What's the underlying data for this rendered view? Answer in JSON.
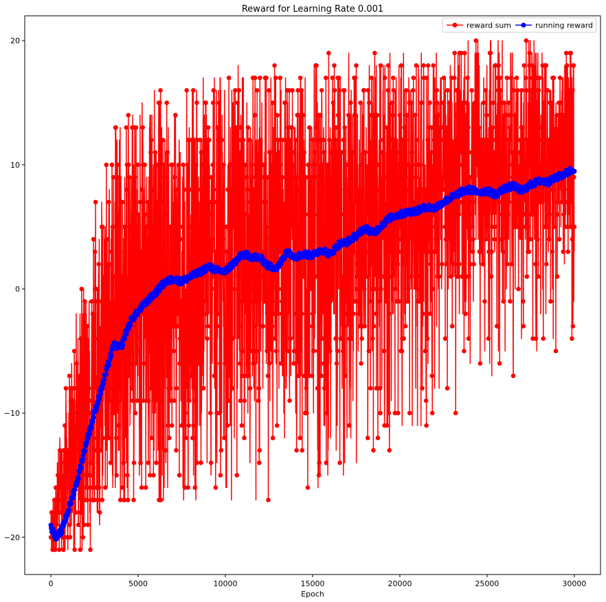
{
  "chart_data": {
    "type": "line",
    "title": "Reward for Learning Rate 0.001",
    "xlabel": "Epoch",
    "ylabel": "",
    "xlim": [
      -1500,
      31500
    ],
    "ylim": [
      -23,
      22
    ],
    "xticks": [
      0,
      5000,
      10000,
      15000,
      20000,
      25000,
      30000
    ],
    "yticks": [
      -20,
      -10,
      0,
      10,
      20
    ],
    "xtick_labels": [
      "0",
      "5000",
      "10000",
      "15000",
      "20000",
      "25000",
      "30000"
    ],
    "ytick_labels": [
      "−20",
      "−10",
      "0",
      "10",
      "20"
    ],
    "grid": false,
    "legend_position": "top-right",
    "legend_columns": 2,
    "series": [
      {
        "name": "reward sum",
        "color": "#ff0000",
        "marker": "circle",
        "x_range": [
          0,
          30000
        ],
        "envelope": {
          "x": [
            0,
            500,
            1000,
            1500,
            2000,
            2500,
            3000,
            3500,
            4000,
            4500,
            5000,
            6000,
            7000,
            8000,
            9000,
            10000,
            11000,
            12000,
            13000,
            14000,
            15000,
            16000,
            17000,
            18000,
            19000,
            20000,
            21000,
            22000,
            23000,
            24000,
            25000,
            26000,
            27000,
            28000,
            29000,
            30000
          ],
          "upper": [
            -18,
            -12,
            -6,
            -2,
            3,
            8,
            12,
            13,
            14,
            14,
            15,
            16,
            17,
            17,
            17,
            18,
            18,
            18,
            18,
            18,
            18,
            19,
            19,
            19,
            19,
            19,
            19,
            20,
            19,
            20,
            20,
            20,
            20,
            20,
            19,
            19
          ],
          "lower": [
            -21,
            -21,
            -21,
            -21,
            -21,
            -21,
            -19,
            -18,
            -18,
            -17,
            -17,
            -17,
            -17,
            -17,
            -17,
            -17,
            -18,
            -18,
            -17,
            -17,
            -17,
            -16,
            -15,
            -14,
            -13,
            -12,
            -12,
            -11,
            -10,
            -9,
            -8,
            -7,
            -7,
            -6,
            -5,
            -5
          ],
          "dense_upper": [
            -18,
            -14,
            -9,
            -5,
            -2,
            2,
            6,
            8,
            9,
            10,
            11,
            12,
            12,
            13,
            13,
            13,
            13,
            13,
            13,
            14,
            14,
            14,
            14,
            15,
            15,
            15,
            15,
            15,
            16,
            16,
            16,
            16,
            16,
            17,
            17,
            17
          ],
          "dense_lower": [
            -21,
            -21,
            -20,
            -19,
            -18,
            -17,
            -15,
            -14,
            -13,
            -12,
            -11,
            -10,
            -9,
            -9,
            -8,
            -8,
            -8,
            -8,
            -8,
            -7,
            -7,
            -6,
            -5,
            -4,
            -3,
            -2,
            -2,
            -1,
            0,
            1,
            2,
            3,
            3,
            4,
            4,
            5
          ]
        }
      },
      {
        "name": "running reward",
        "color": "#0000ff",
        "marker": "circle",
        "x": [
          0,
          300,
          600,
          1000,
          1500,
          2000,
          2500,
          3000,
          3300,
          3600,
          4000,
          4300,
          4600,
          5000,
          5500,
          6000,
          6500,
          7000,
          7500,
          8000,
          8500,
          9000,
          9500,
          10000,
          10500,
          11000,
          11500,
          12000,
          12500,
          13000,
          13500,
          14000,
          14500,
          15000,
          15500,
          16000,
          16500,
          17000,
          17500,
          18000,
          18500,
          19000,
          19500,
          20000,
          20500,
          21000,
          21500,
          22000,
          22500,
          23000,
          23500,
          24000,
          24500,
          25000,
          25500,
          26000,
          26500,
          27000,
          27500,
          28000,
          28500,
          29000,
          29500,
          30000
        ],
        "values": [
          -19.2,
          -20.0,
          -19.5,
          -17.8,
          -15.5,
          -12.5,
          -10.0,
          -7.5,
          -6.0,
          -4.5,
          -4.8,
          -3.5,
          -2.5,
          -1.8,
          -1.0,
          -0.3,
          0.5,
          0.8,
          0.6,
          1.0,
          1.3,
          1.8,
          1.5,
          1.4,
          2.1,
          2.8,
          2.6,
          2.5,
          1.8,
          1.7,
          3.0,
          2.6,
          2.8,
          2.7,
          3.2,
          2.8,
          3.6,
          3.8,
          4.3,
          4.9,
          4.5,
          5.2,
          5.8,
          6.0,
          6.2,
          6.3,
          6.6,
          6.5,
          7.0,
          7.4,
          7.8,
          8.0,
          7.8,
          7.9,
          7.6,
          8.1,
          8.3,
          7.9,
          8.4,
          8.7,
          8.6,
          9.0,
          9.3,
          9.7
        ]
      }
    ]
  }
}
